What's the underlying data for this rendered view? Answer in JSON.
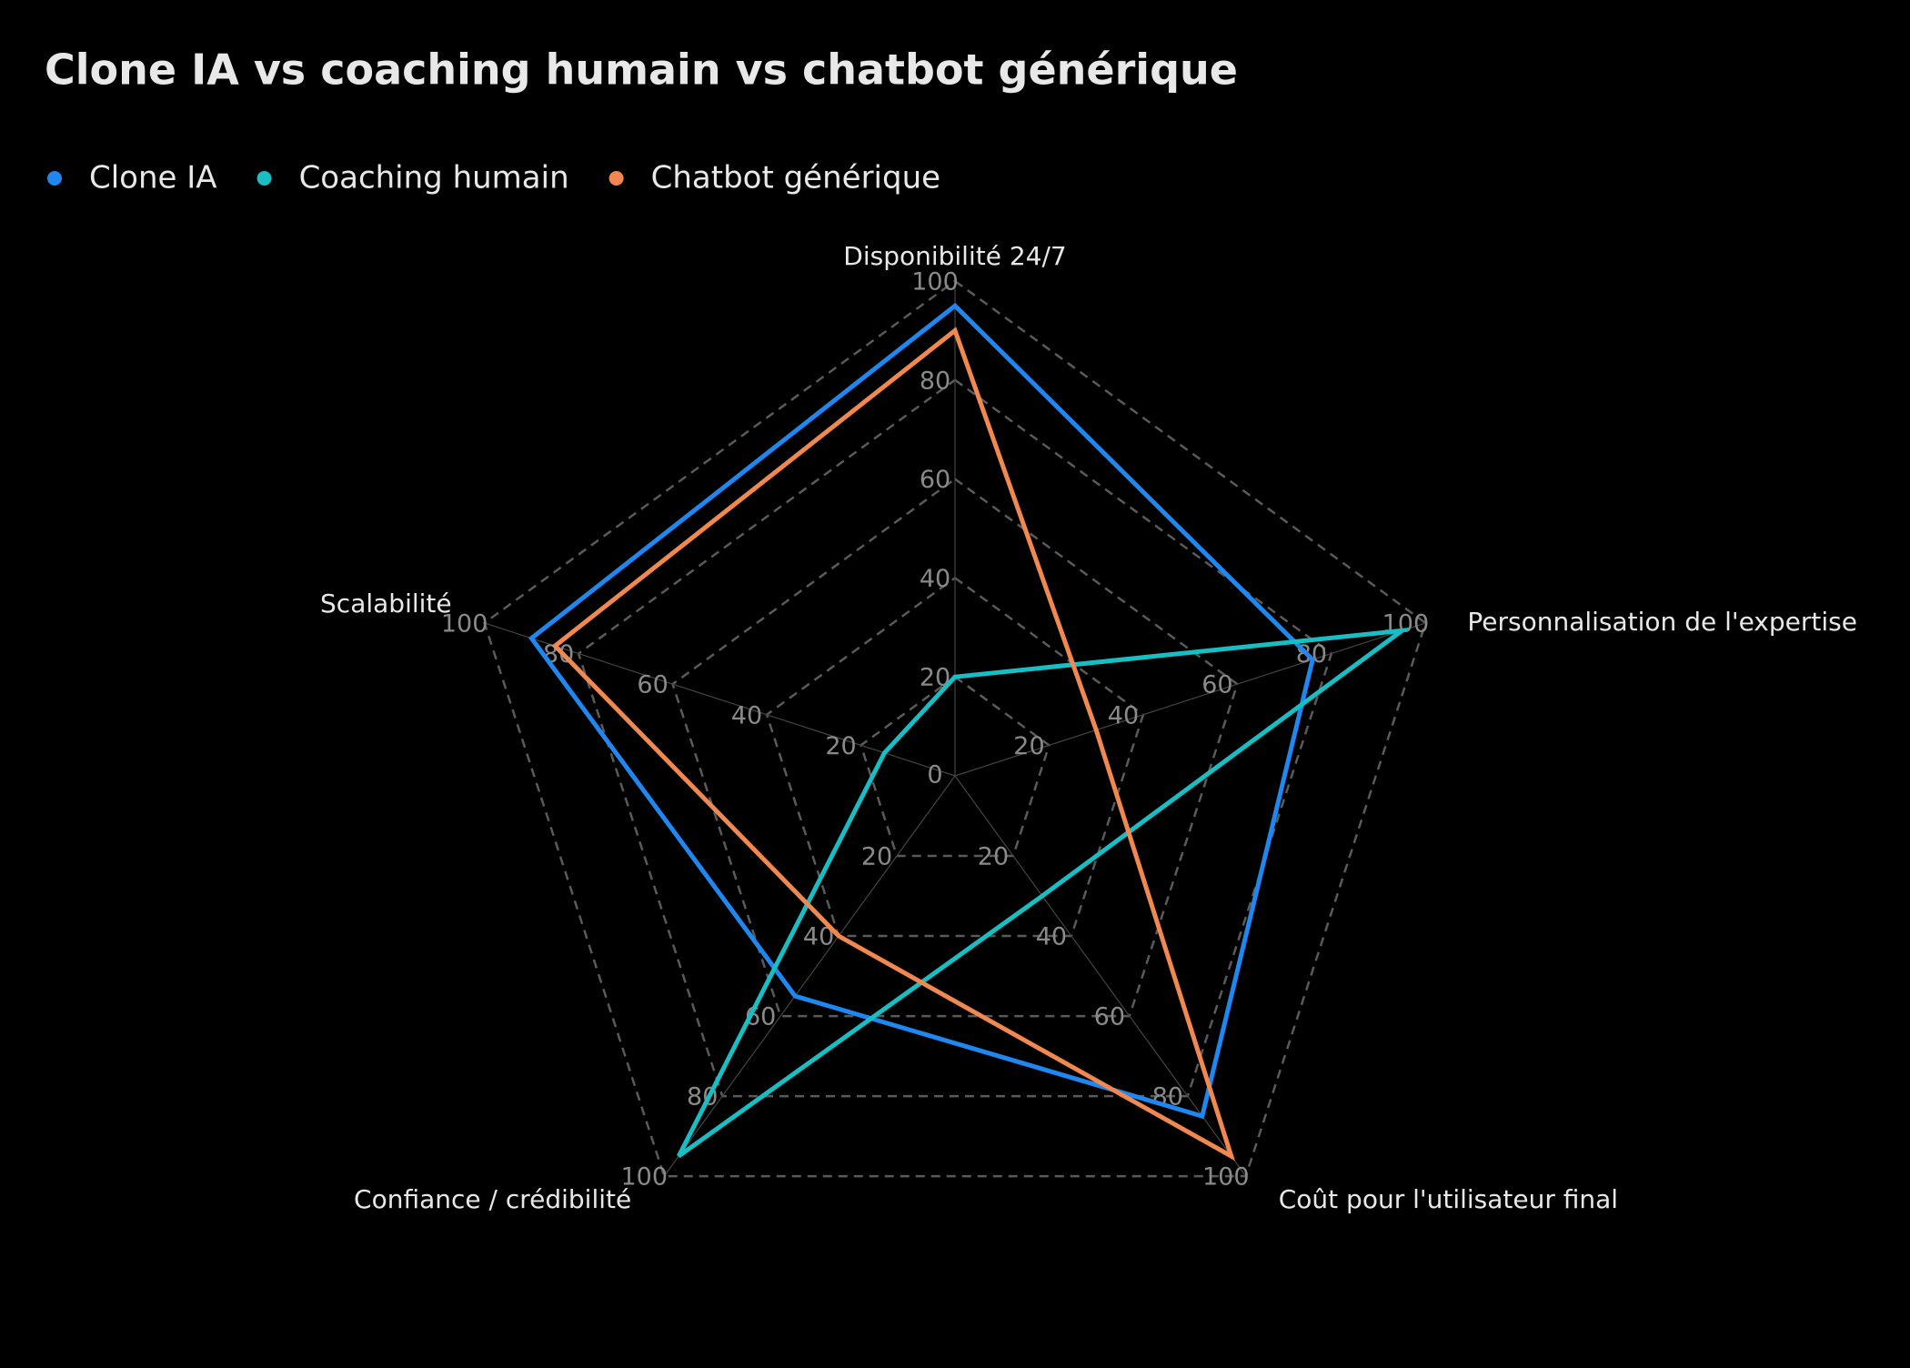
{
  "chart_data": {
    "type": "radar",
    "title": "Clone IA vs coaching humain vs chatbot générique",
    "categories": [
      "Disponibilité 24/7",
      "Personnalisation de l'expertise",
      "Coût pour l'utilisateur final",
      "Confiance / crédibilité",
      "Scalabilité"
    ],
    "series": [
      {
        "name": "Clone IA",
        "color": "#1f87f0",
        "values": [
          95,
          76,
          85,
          55,
          90
        ]
      },
      {
        "name": "Coaching humain",
        "color": "#17bec4",
        "values": [
          20,
          95,
          30,
          95,
          15
        ]
      },
      {
        "name": "Chatbot générique",
        "color": "#f0884f",
        "values": [
          90,
          30,
          95,
          40,
          85
        ]
      }
    ],
    "rlim": [
      0,
      100
    ],
    "rticks": [
      0,
      20,
      40,
      60,
      80,
      100
    ],
    "grid": true,
    "legend": "top-left"
  }
}
